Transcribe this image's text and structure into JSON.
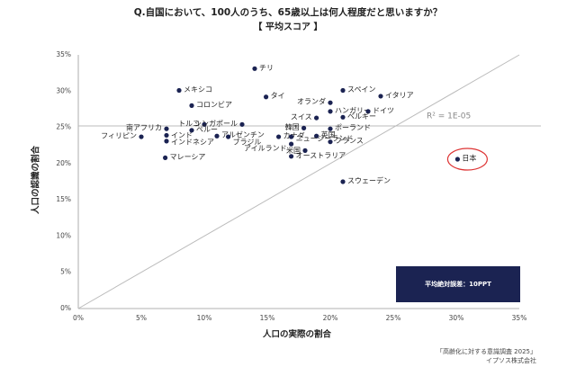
{
  "chart_data": {
    "type": "scatter",
    "title": "Q.自国において、100人のうち、65歳以上は何人程度だと思いますか？",
    "subtitle": "【 平均スコア 】",
    "x_label": "人口の実際の割合",
    "y_label": "人口の認識の割合",
    "color": "#1b2352",
    "labels": [
      "チリ",
      "メキシコ",
      "タイ",
      "スペイン",
      "イタリア",
      "オランダ",
      "コロンビア",
      "ハンガリー",
      "ドイツ",
      "スイス",
      "ベルギー",
      "南アフリカ",
      "インド",
      "インドネシア",
      "トルコ",
      "シンガポール",
      "韓国",
      "カナダ",
      "ポーランド",
      "英国",
      "フィリピン",
      "ペルー",
      "アルゼンチン",
      "ブラジル",
      "ニュージーランド",
      "アイルランド",
      "米国",
      "フランス",
      "マレーシア",
      "オーストラリア",
      "日本",
      "スウェーデン"
    ],
    "x": [
      14.0,
      8.0,
      14.9,
      21.0,
      24.0,
      20.0,
      9.0,
      20.0,
      23.0,
      18.9,
      21.0,
      7.0,
      7.0,
      7.0,
      10.0,
      13.0,
      17.9,
      15.9,
      20.0,
      18.9,
      5.0,
      9.0,
      11.0,
      11.9,
      16.9,
      16.9,
      18.0,
      20.0,
      6.9,
      16.9,
      30.1,
      21.0
    ],
    "values": [
      33.1,
      30.1,
      29.2,
      30.1,
      29.3,
      28.4,
      28.0,
      27.2,
      27.2,
      26.3,
      26.4,
      24.8,
      23.9,
      23.1,
      25.4,
      25.4,
      24.9,
      23.7,
      24.8,
      23.8,
      23.7,
      24.6,
      23.8,
      23.7,
      23.7,
      22.7,
      21.8,
      23.0,
      20.8,
      21.0,
      20.6,
      17.5
    ],
    "xlim": [
      0,
      35
    ],
    "ylim": [
      0,
      35
    ],
    "xticks": [
      {
        "value": 0,
        "label": "0%"
      },
      {
        "value": 5,
        "label": "5%"
      },
      {
        "value": 10,
        "label": "10%"
      },
      {
        "value": 15,
        "label": "15%"
      },
      {
        "value": 20,
        "label": "20%"
      },
      {
        "value": 25,
        "label": "25%"
      },
      {
        "value": 30,
        "label": "30%"
      },
      {
        "value": 35,
        "label": "35%"
      }
    ],
    "yticks": [
      {
        "value": 0,
        "label": "0%"
      },
      {
        "value": 5,
        "label": "5%"
      },
      {
        "value": 10,
        "label": "10%"
      },
      {
        "value": 15,
        "label": "15%"
      },
      {
        "value": 20,
        "label": "20%"
      },
      {
        "value": 25,
        "label": "25%"
      },
      {
        "value": 30,
        "label": "30%"
      },
      {
        "value": 35,
        "label": "35%"
      }
    ],
    "reference_line": 25.2,
    "r_squared_label": "R² = 1E-05",
    "note": "平均絶対誤差：10PPT",
    "source": [
      "「高齢化に対する意識調査 2025」",
      "イプソス株式会社"
    ]
  }
}
